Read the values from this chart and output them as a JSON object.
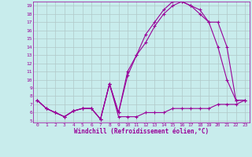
{
  "xlabel": "Windchill (Refroidissement éolien,°C)",
  "background_color": "#c8ecec",
  "line_color": "#990099",
  "grid_color": "#b0c8c8",
  "xlim": [
    -0.5,
    23.5
  ],
  "ylim": [
    4.8,
    19.5
  ],
  "xticks": [
    0,
    1,
    2,
    3,
    4,
    5,
    6,
    7,
    8,
    9,
    10,
    11,
    12,
    13,
    14,
    15,
    16,
    17,
    18,
    19,
    20,
    21,
    22,
    23
  ],
  "yticks": [
    5,
    6,
    7,
    8,
    9,
    10,
    11,
    12,
    13,
    14,
    15,
    16,
    17,
    18,
    19
  ],
  "line1_x": [
    0,
    1,
    2,
    3,
    4,
    5,
    6,
    7,
    8,
    9,
    10,
    11,
    12,
    13,
    14,
    15,
    16,
    17,
    18,
    19,
    20,
    21,
    22,
    23
  ],
  "line1_y": [
    7.5,
    6.5,
    6.0,
    5.5,
    6.2,
    6.5,
    6.5,
    5.2,
    9.5,
    5.5,
    5.5,
    5.5,
    6.0,
    6.0,
    6.0,
    6.5,
    6.5,
    6.5,
    6.5,
    6.5,
    7.0,
    7.0,
    7.0,
    7.5
  ],
  "line2_x": [
    0,
    1,
    2,
    3,
    4,
    5,
    6,
    7,
    8,
    9,
    10,
    11,
    12,
    13,
    14,
    15,
    16,
    17,
    18,
    19,
    20,
    21,
    22,
    23
  ],
  "line2_y": [
    7.5,
    6.5,
    6.0,
    5.5,
    6.2,
    6.5,
    6.5,
    5.2,
    9.5,
    6.0,
    11.0,
    13.0,
    15.5,
    17.0,
    18.5,
    19.5,
    19.5,
    19.0,
    18.5,
    17.0,
    17.0,
    14.0,
    7.5,
    7.5
  ],
  "line3_x": [
    0,
    1,
    2,
    3,
    4,
    5,
    6,
    7,
    8,
    9,
    10,
    11,
    12,
    13,
    14,
    15,
    16,
    17,
    18,
    19,
    20,
    21,
    22,
    23
  ],
  "line3_y": [
    7.5,
    6.5,
    6.0,
    5.5,
    6.2,
    6.5,
    6.5,
    5.2,
    9.5,
    6.0,
    10.5,
    13.0,
    14.5,
    16.5,
    18.0,
    19.0,
    19.5,
    19.0,
    18.0,
    17.0,
    14.0,
    10.0,
    7.5,
    7.5
  ]
}
